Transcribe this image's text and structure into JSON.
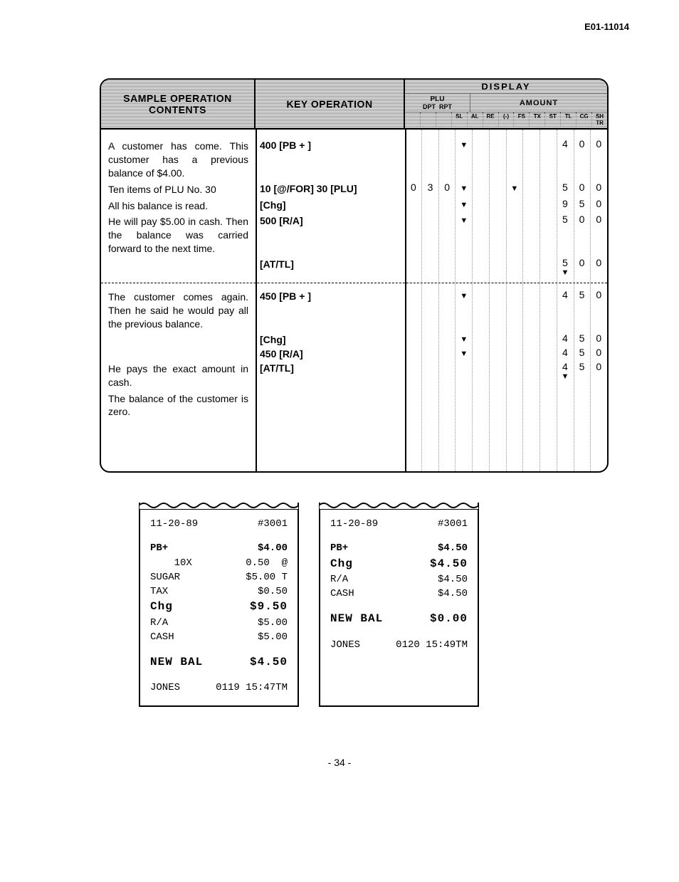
{
  "doc_code": "E01-11014",
  "page_number": "- 34 -",
  "table": {
    "headers": {
      "col1_line1": "SAMPLE OPERATION",
      "col1_line2": "CONTENTS",
      "col2": "KEY OPERATION",
      "display_title": "DISPLAY",
      "plu": "PLU",
      "dpt": "DPT",
      "rpt": "RPT",
      "amount": "AMOUNT",
      "small_labels": [
        "",
        "",
        "",
        "SL",
        "AL",
        "RE",
        "(-)",
        "FS",
        "TX",
        "ST",
        "TL",
        "CG",
        "SH\nTR"
      ]
    },
    "rows": [
      {
        "desc": "A customer has come. This customer has a previous balance of $4.00.",
        "key": "400 [PB + ]",
        "cells": [
          "",
          "",
          "",
          "▼",
          "",
          "",
          "",
          "",
          "",
          "4",
          "0",
          "0"
        ]
      },
      {
        "desc": "Ten items of PLU No. 30",
        "key": "10 [@/FOR]  30 [PLU]",
        "cells": [
          "0",
          "3",
          "0",
          "▼",
          "",
          "",
          "▼",
          "",
          "",
          "5",
          "0",
          "0"
        ]
      },
      {
        "desc": "All his balance is read.",
        "key": "[Chg]",
        "cells": [
          "",
          "",
          "",
          "▼",
          "",
          "",
          "",
          "",
          "",
          "9",
          "5",
          "0"
        ]
      },
      {
        "desc": "He will pay $5.00 in cash. Then the balance was carried forward to the next time.",
        "key": "500 [R/A]",
        "cells": [
          "",
          "",
          "",
          "▼",
          "",
          "",
          "",
          "",
          "",
          "5",
          "0",
          "0"
        ]
      },
      {
        "desc": "",
        "key": "[AT/TL]",
        "cells": [
          "",
          "",
          "",
          "",
          "",
          "",
          "",
          "",
          "",
          "5\n▼",
          "0",
          "0"
        ]
      },
      {
        "divider": true
      },
      {
        "desc": "The customer comes again. Then he said he would pay all the previous balance.",
        "key": "450 [PB + ]",
        "cells": [
          "",
          "",
          "",
          "▼",
          "",
          "",
          "",
          "",
          "",
          "4",
          "5",
          "0"
        ]
      },
      {
        "desc": "",
        "key": "[Chg]",
        "cells": [
          "",
          "",
          "",
          "▼",
          "",
          "",
          "",
          "",
          "",
          "4",
          "5",
          "0"
        ]
      },
      {
        "desc": "",
        "key": "450 [R/A]",
        "cells": [
          "",
          "",
          "",
          "▼",
          "",
          "",
          "",
          "",
          "",
          "4",
          "5",
          "0"
        ]
      },
      {
        "desc": "He pays the exact amount in cash.",
        "key": "[AT/TL]",
        "cells": [
          "",
          "",
          "",
          "",
          "",
          "",
          "",
          "",
          "",
          "4\n▼",
          "5",
          "0"
        ]
      },
      {
        "desc": "The balance of the customer is zero.",
        "key": "",
        "cells": [
          "",
          "",
          "",
          "",
          "",
          "",
          "",
          "",
          "",
          "",
          "",
          ""
        ]
      }
    ]
  },
  "receipt1": {
    "lines": [
      {
        "l": "11-20-89",
        "r": "#3001",
        "cls": ""
      },
      {
        "blank": true
      },
      {
        "l": "PB+",
        "r": "$4.00",
        "cls": "bold"
      },
      {
        "l": "    10X",
        "r": "0.50  @",
        "cls": ""
      },
      {
        "l": "SUGAR",
        "r": "$5.00 T",
        "cls": ""
      },
      {
        "l": "TAX",
        "r": "$0.50",
        "cls": ""
      },
      {
        "l": "Chg",
        "r": "$9.50",
        "cls": "big"
      },
      {
        "l": "R/A",
        "r": "$5.00",
        "cls": ""
      },
      {
        "l": "CASH",
        "r": "$5.00",
        "cls": ""
      },
      {
        "blank": true
      },
      {
        "l": "NEW BAL",
        "r": "$4.50",
        "cls": "big"
      },
      {
        "blank": true
      },
      {
        "l": "JONES",
        "r": "0119 15:47TM",
        "cls": ""
      }
    ]
  },
  "receipt2": {
    "lines": [
      {
        "l": "11-20-89",
        "r": "#3001",
        "cls": ""
      },
      {
        "blank": true
      },
      {
        "l": "PB+",
        "r": "$4.50",
        "cls": "bold"
      },
      {
        "l": "Chg",
        "r": "$4.50",
        "cls": "big"
      },
      {
        "l": "R/A",
        "r": "$4.50",
        "cls": ""
      },
      {
        "l": "CASH",
        "r": "$4.50",
        "cls": ""
      },
      {
        "blank": true
      },
      {
        "l": "NEW BAL",
        "r": "$0.00",
        "cls": "big"
      },
      {
        "blank": true
      },
      {
        "l": "JONES",
        "r": "0120 15:49TM",
        "cls": ""
      }
    ]
  }
}
